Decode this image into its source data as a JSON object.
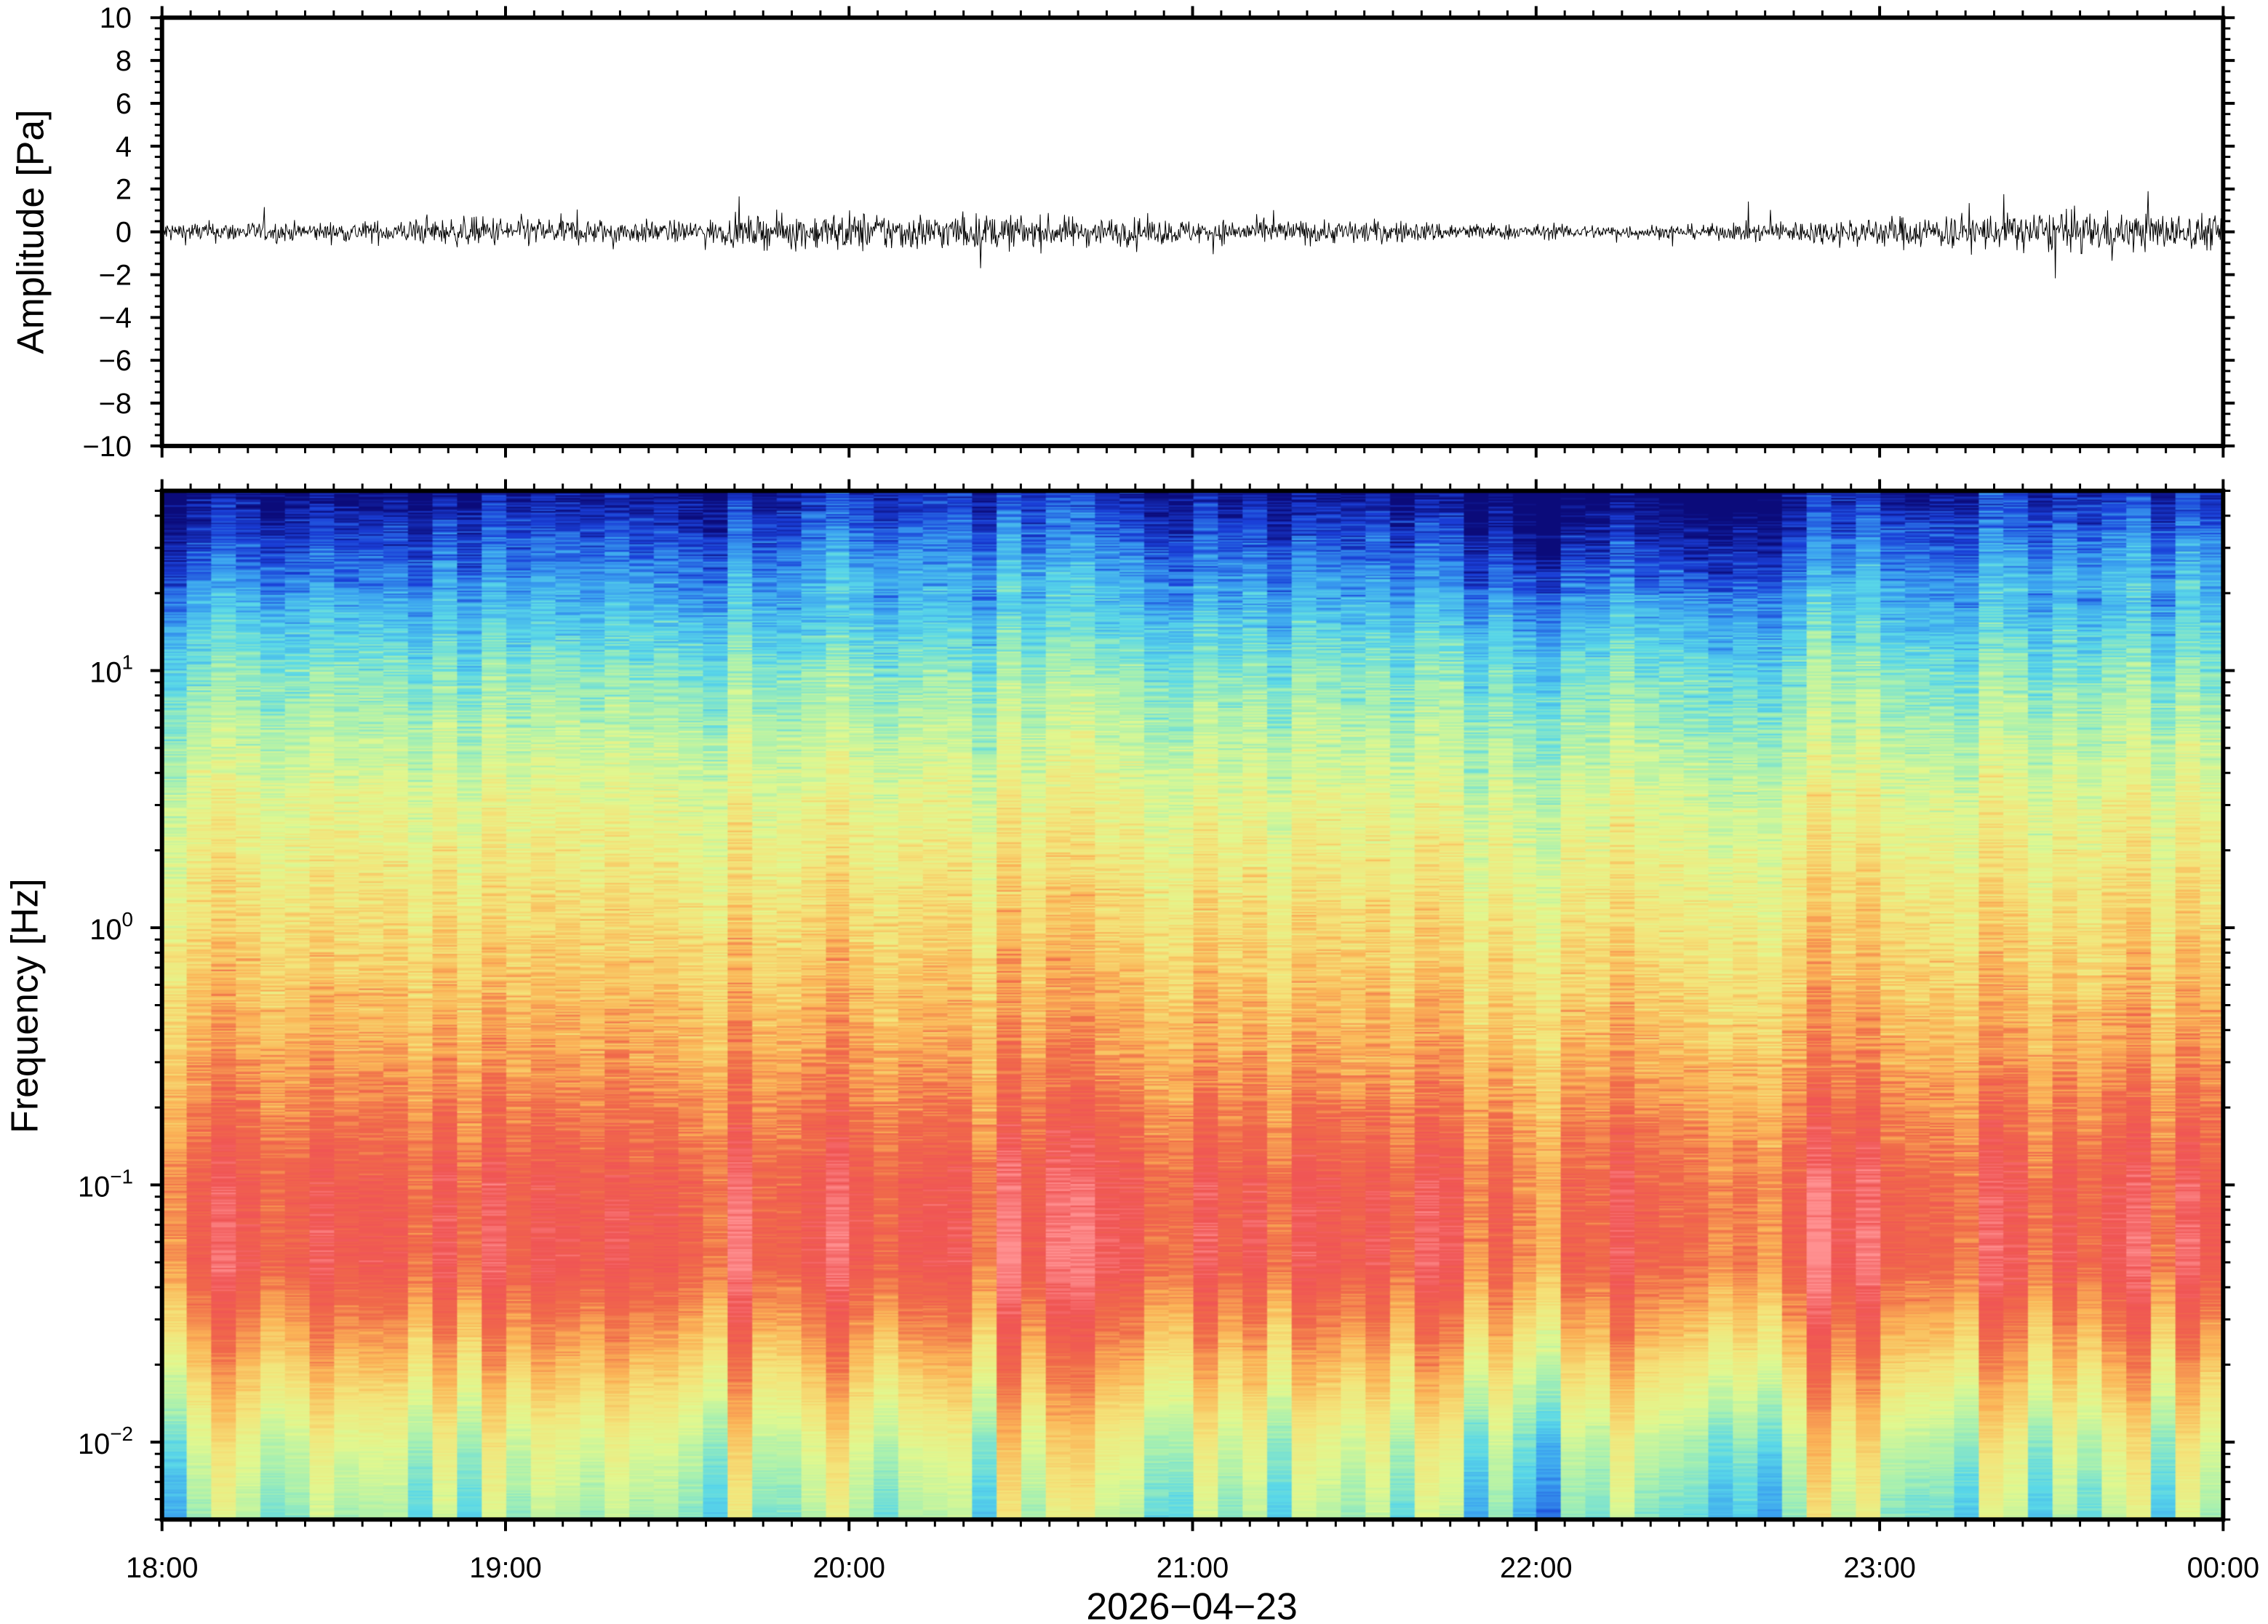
{
  "chart_data": [
    {
      "type": "line",
      "panel": "waveform",
      "ylabel": "Amplitude [Pa]",
      "ylim": [
        -10,
        10
      ],
      "yticks": [
        "10",
        "8",
        "6",
        "4",
        "2",
        "0",
        "−2",
        "−4",
        "−6",
        "−8",
        "−10"
      ],
      "xlim": [
        "18:00",
        "00:00"
      ],
      "envelope_note": "approximate noise amplitude (Pa) per half hour",
      "x": [
        "18:00",
        "18:30",
        "19:00",
        "19:30",
        "20:00",
        "20:30",
        "21:00",
        "21:30",
        "22:00",
        "22:30",
        "23:00",
        "23:30",
        "00:00"
      ],
      "values": [
        0.45,
        0.4,
        0.65,
        0.45,
        0.85,
        0.7,
        0.5,
        0.5,
        0.3,
        0.3,
        0.65,
        0.85,
        0.75
      ],
      "peak_max": 2.8,
      "peak_min": -3.0,
      "color": "#000000"
    },
    {
      "type": "heatmap",
      "panel": "spectrogram",
      "ylabel": "Frequency [Hz]",
      "xlabel": "2026−04−23",
      "yscale": "log",
      "ylim": [
        0.005,
        50
      ],
      "yticks": [
        {
          "base": "10",
          "exp": "1",
          "value": 10
        },
        {
          "base": "10",
          "exp": "0",
          "value": 1
        },
        {
          "base": "10",
          "exp": "−1",
          "value": 0.1
        },
        {
          "base": "10",
          "exp": "−2",
          "value": 0.01
        }
      ],
      "xticks": [
        "18:00",
        "19:00",
        "20:00",
        "21:00",
        "22:00",
        "23:00",
        "00:00"
      ],
      "colormap": [
        "#0b0b7a",
        "#1a3fd8",
        "#3aa0f0",
        "#5ad8e8",
        "#a8f0b0",
        "#e0f890",
        "#f4e47a",
        "#fbb457",
        "#f06a4a",
        "#f05555",
        "#ff9090"
      ],
      "relative_power_profile": {
        "log10_freq": [
          1.7,
          1.45,
          1.0,
          0.5,
          0.0,
          -0.5,
          -1.0,
          -1.3,
          -1.6,
          -2.0,
          -2.3
        ],
        "level": [
          0.02,
          0.15,
          0.36,
          0.52,
          0.62,
          0.72,
          0.86,
          0.87,
          0.72,
          0.5,
          0.4
        ]
      },
      "activity_by_half_hour": [
        0.4,
        0.35,
        0.55,
        0.45,
        0.8,
        0.7,
        0.55,
        0.5,
        0.3,
        0.25,
        0.6,
        0.8,
        0.75
      ]
    }
  ]
}
